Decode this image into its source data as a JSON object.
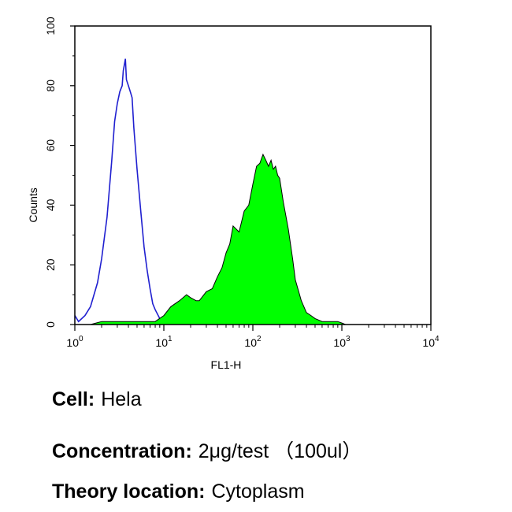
{
  "chart_data": {
    "type": "area",
    "xlabel": "FL1-H",
    "ylabel": "Counts",
    "x_scale": "log",
    "xlim": [
      1,
      10000
    ],
    "ylim": [
      0,
      100
    ],
    "x_ticks": [
      {
        "base": "10",
        "exp": "0",
        "value": 1
      },
      {
        "base": "10",
        "exp": "1",
        "value": 10
      },
      {
        "base": "10",
        "exp": "2",
        "value": 100
      },
      {
        "base": "10",
        "exp": "3",
        "value": 1000
      },
      {
        "base": "10",
        "exp": "4",
        "value": 10000
      }
    ],
    "y_ticks": [
      "0",
      "20",
      "40",
      "60",
      "80",
      "100"
    ],
    "grid": false,
    "series": [
      {
        "style": "outline",
        "color": "#2020d0",
        "x": [
          1.0,
          1.1,
          1.3,
          1.5,
          1.8,
          2.0,
          2.3,
          2.6,
          2.8,
          3.0,
          3.2,
          3.4,
          3.5,
          3.7,
          3.8,
          4.0,
          4.2,
          4.4,
          4.6,
          5.0,
          5.5,
          6.0,
          6.5,
          7.0,
          7.5,
          8.0,
          9.0,
          10.0
        ],
        "y": [
          3,
          1,
          3,
          6,
          14,
          22,
          36,
          55,
          68,
          74,
          78,
          80,
          85,
          89,
          82,
          80,
          78,
          76,
          66,
          52,
          38,
          26,
          18,
          12,
          7,
          5,
          2,
          1
        ]
      },
      {
        "style": "filled",
        "color": "#00ff00",
        "x": [
          1.0,
          1.5,
          2.0,
          3.0,
          5.0,
          8.0,
          10,
          12,
          15,
          18,
          20,
          23,
          25,
          30,
          35,
          40,
          45,
          50,
          55,
          60,
          70,
          80,
          90,
          100,
          110,
          120,
          130,
          140,
          150,
          160,
          170,
          180,
          190,
          200,
          220,
          250,
          280,
          300,
          350,
          400,
          450,
          500,
          600,
          700,
          800,
          900,
          1000,
          1100,
          1300
        ],
        "y": [
          0,
          0,
          1,
          1,
          1,
          1,
          3,
          6,
          8,
          10,
          9,
          8,
          8,
          11,
          12,
          16,
          19,
          24,
          27,
          33,
          31,
          38,
          40,
          47,
          53,
          54,
          57,
          55,
          53,
          55,
          52,
          53,
          50,
          49,
          41,
          32,
          22,
          15,
          8,
          4,
          3,
          2,
          1,
          1,
          1,
          1,
          0.5,
          0,
          0
        ]
      }
    ]
  },
  "info": {
    "cell": {
      "label": "Cell:",
      "value": "Hela"
    },
    "concentration": {
      "label": "Concentration:",
      "value": "2μg/test （100ul）"
    },
    "theory_location": {
      "label": "Theory location:",
      "value": "Cytoplasm"
    }
  }
}
